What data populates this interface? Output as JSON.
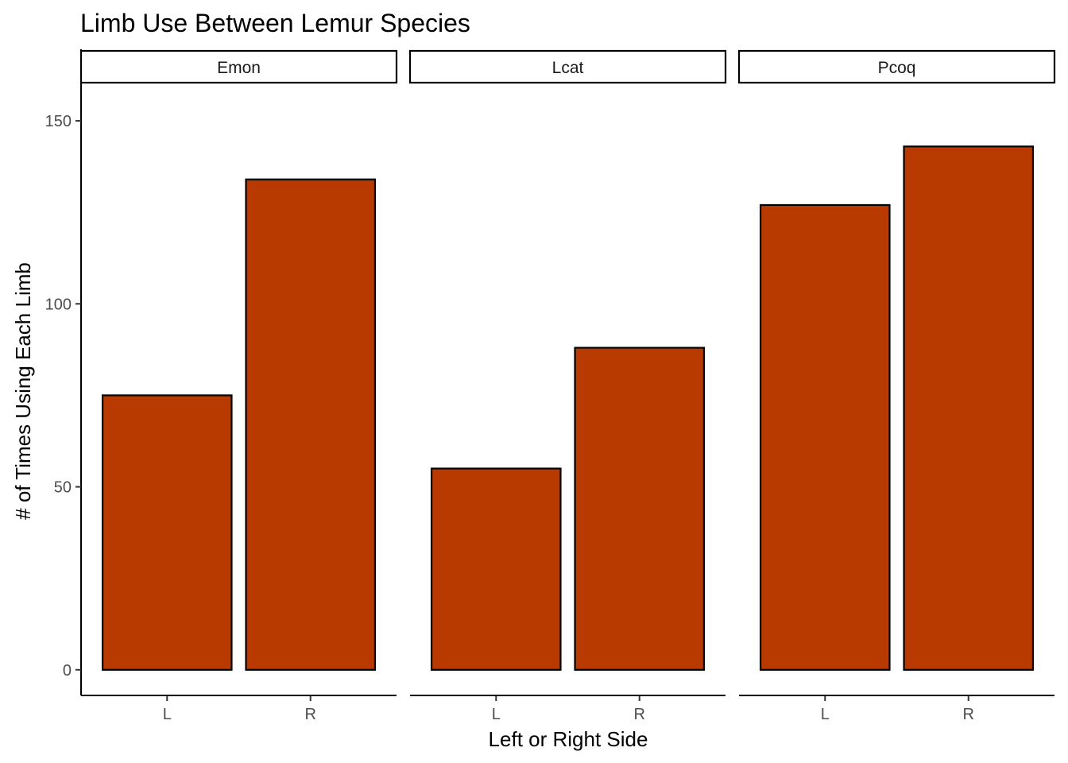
{
  "chart_data": {
    "type": "bar",
    "title": "Limb Use Between Lemur Species",
    "xlabel": "Left or Right Side",
    "ylabel": "# of Times Using Each Limb",
    "ylim": [
      -7,
      160
    ],
    "yticks": [
      0,
      50,
      100,
      150
    ],
    "categories": [
      "L",
      "R"
    ],
    "facets": [
      {
        "name": "Emon",
        "values": [
          75,
          134
        ]
      },
      {
        "name": "Lcat",
        "values": [
          55,
          88
        ]
      },
      {
        "name": "Pcoq",
        "values": [
          127,
          143
        ]
      }
    ],
    "bar_color": "#B83A00",
    "grid": false,
    "legend": "none"
  }
}
